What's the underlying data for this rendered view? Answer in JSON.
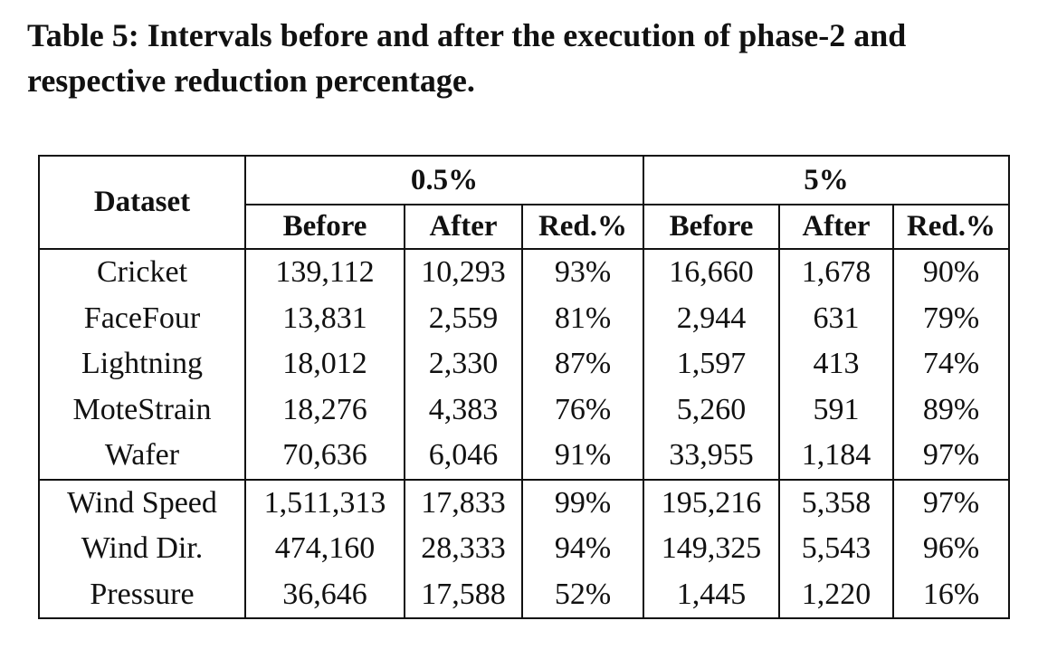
{
  "caption": "Table 5: Intervals before and after the execution of phase-2 and respective reduction percentage.",
  "table": {
    "dataset_header": "Dataset",
    "groups": [
      "0.5%",
      "5%"
    ],
    "subheaders": [
      "Before",
      "After",
      "Red.%",
      "Before",
      "After",
      "Red.%"
    ],
    "rows": [
      [
        "Cricket",
        "139,112",
        "10,293",
        "93%",
        "16,660",
        "1,678",
        "90%"
      ],
      [
        "FaceFour",
        "13,831",
        "2,559",
        "81%",
        "2,944",
        "631",
        "79%"
      ],
      [
        "Lightning",
        "18,012",
        "2,330",
        "87%",
        "1,597",
        "413",
        "74%"
      ],
      [
        "MoteStrain",
        "18,276",
        "4,383",
        "76%",
        "5,260",
        "591",
        "89%"
      ],
      [
        "Wafer",
        "70,636",
        "6,046",
        "91%",
        "33,955",
        "1,184",
        "97%"
      ],
      [
        "Wind Speed",
        "1,511,313",
        "17,833",
        "99%",
        "195,216",
        "5,358",
        "97%"
      ],
      [
        "Wind Dir.",
        "474,160",
        "28,333",
        "94%",
        "149,325",
        "5,543",
        "96%"
      ],
      [
        "Pressure",
        "36,646",
        "17,588",
        "52%",
        "1,445",
        "1,220",
        "16%"
      ]
    ]
  }
}
